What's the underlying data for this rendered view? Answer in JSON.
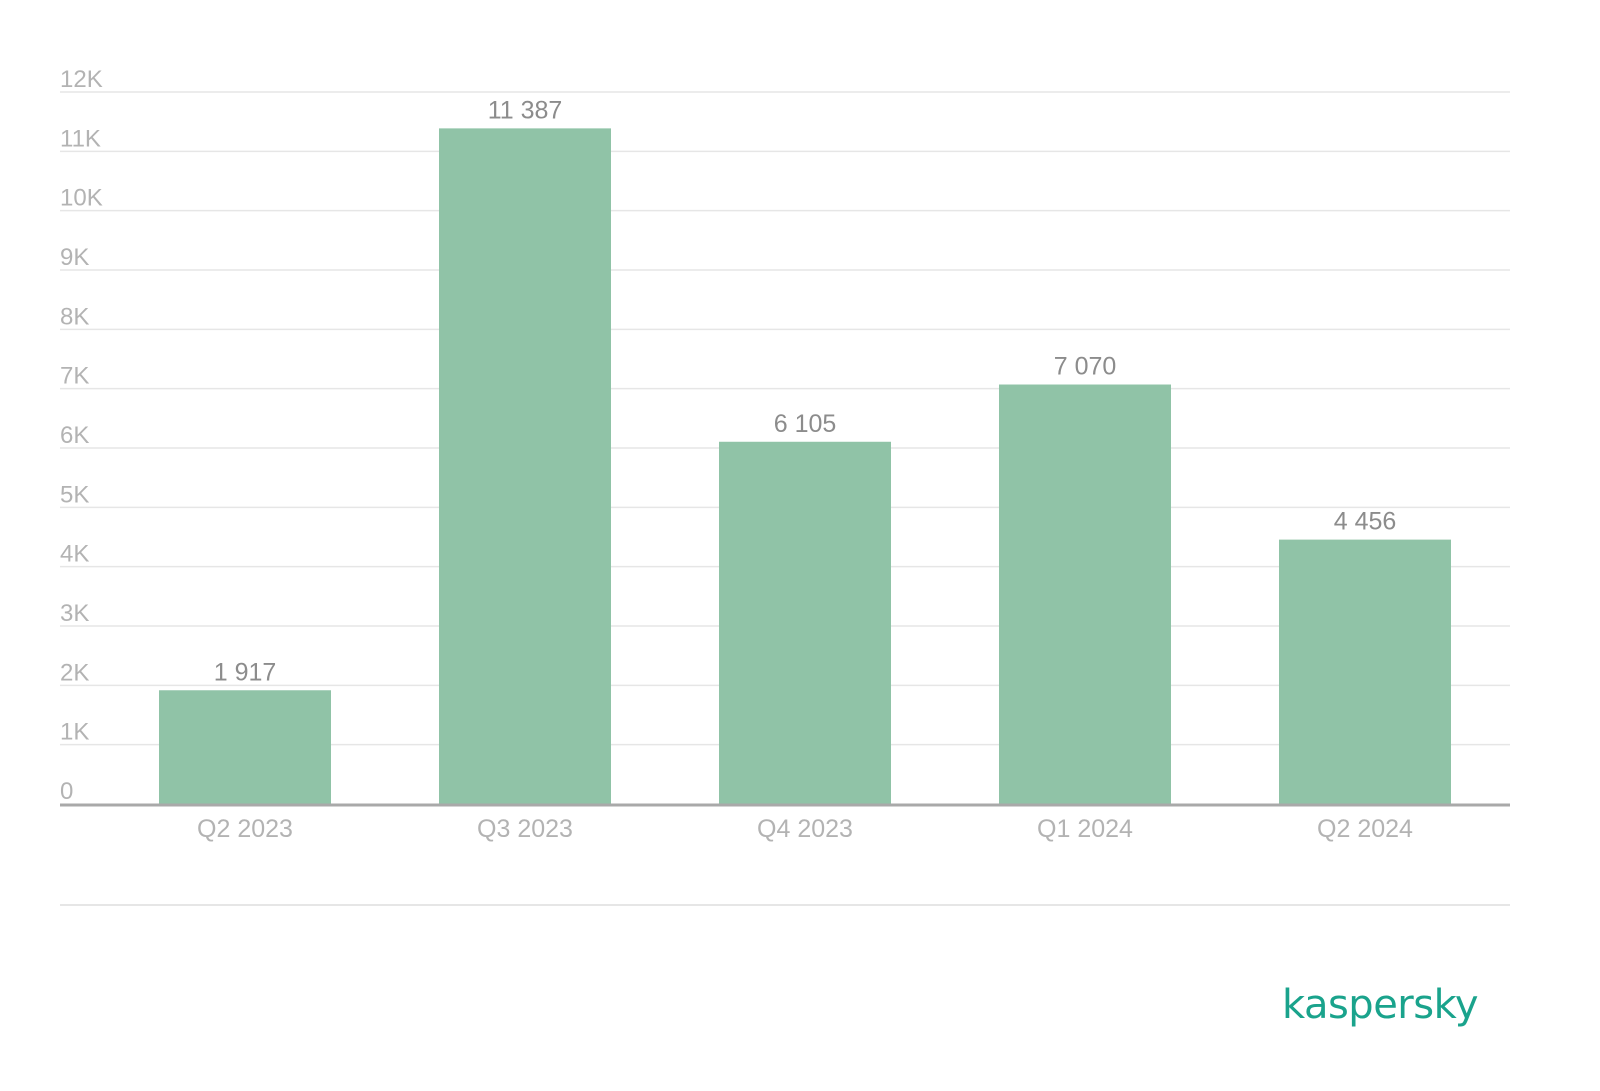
{
  "chart_data": {
    "type": "bar",
    "categories": [
      "Q2 2023",
      "Q3 2023",
      "Q4 2023",
      "Q1 2024",
      "Q2 2024"
    ],
    "values": [
      1917,
      11387,
      6105,
      7070,
      4456
    ],
    "data_labels": [
      "1 917",
      "11 387",
      "6 105",
      "7 070",
      "4 456"
    ],
    "y_ticks": [
      0,
      1000,
      2000,
      3000,
      4000,
      5000,
      6000,
      7000,
      8000,
      9000,
      10000,
      11000,
      12000
    ],
    "y_tick_labels": [
      "0",
      "1K",
      "2K",
      "3K",
      "4K",
      "5K",
      "6K",
      "7K",
      "8K",
      "9K",
      "10K",
      "11K",
      "12K"
    ],
    "ylim": [
      0,
      12000
    ],
    "grid": true,
    "legend": "none",
    "title": "",
    "xlabel": "",
    "ylabel": ""
  },
  "colors": {
    "bar": "#90c3a7",
    "grid": "#e6e6e6",
    "axis": "#a9a9a9",
    "tick_text": "#b3b3b3",
    "label_text": "#8c8c8c",
    "brand": "#1aa38c"
  },
  "brand": {
    "logo_text": "kaspersky"
  }
}
